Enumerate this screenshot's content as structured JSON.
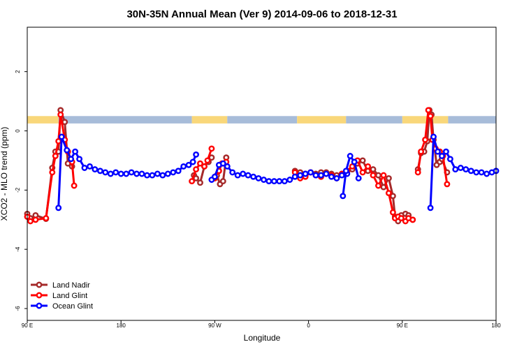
{
  "chart_data": {
    "type": "line",
    "title": "30N-35N Annual Mean (Ver 9)   2014-09-06 to 2018-12-31",
    "xlabel": "Longitude",
    "ylabel": "XCO2 - MLO trend (ppm)",
    "xlim": [
      90,
      540
    ],
    "ylim": [
      -6.4,
      3.5
    ],
    "xticks": [
      {
        "value": 90,
        "label": "90 E"
      },
      {
        "value": 180,
        "label": "180"
      },
      {
        "value": 270,
        "label": "90 W"
      },
      {
        "value": 360,
        "label": "0"
      },
      {
        "value": 450,
        "label": "90 E"
      },
      {
        "value": 540,
        "label": "180"
      }
    ],
    "yticks": [
      {
        "value": 2,
        "label": "2"
      },
      {
        "value": 0,
        "label": "0"
      },
      {
        "value": -2,
        "label": "-2"
      },
      {
        "value": -4,
        "label": "-4"
      },
      {
        "value": -6,
        "label": "-6"
      }
    ],
    "land_mask": {
      "y_top": 0.5,
      "y_bottom": 0.25,
      "ocean_color": "#a7bcd9",
      "land_color": "#f9d77a",
      "segments": [
        {
          "type": "land",
          "from": 90,
          "to": 120
        },
        {
          "type": "ocean",
          "from": 120,
          "to": 248
        },
        {
          "type": "land",
          "from": 248,
          "to": 282
        },
        {
          "type": "ocean",
          "from": 282,
          "to": 349
        },
        {
          "type": "land",
          "from": 349,
          "to": 396
        },
        {
          "type": "ocean",
          "from": 396,
          "to": 450
        },
        {
          "type": "land",
          "from": 450,
          "to": 494
        },
        {
          "type": "ocean",
          "from": 494,
          "to": 540
        }
      ]
    },
    "series": [
      {
        "name": "Land Nadir",
        "color": "#a52a2a",
        "segments": [
          {
            "x": [
              90,
              93,
              98,
              108,
              114,
              117,
              120,
              122,
              126,
              129,
              133
            ],
            "y": [
              -2.8,
              -2.95,
              -2.85,
              -2.97,
              -1.25,
              -0.7,
              -0.7,
              0.7,
              0.3,
              -1.1,
              -1.2
            ]
          },
          {
            "x": [
              250,
              252,
              256,
              260,
              264,
              267
            ],
            "y": [
              -1.5,
              -1.6,
              -1.75,
              -1.2,
              -1.05,
              -0.9
            ]
          },
          {
            "x": [
              272,
              275,
              278,
              281
            ],
            "y": [
              -1.5,
              -1.8,
              -1.7,
              -0.9
            ]
          },
          {
            "x": [
              347,
              352,
              357,
              362,
              367,
              372,
              377,
              382,
              387,
              392,
              397,
              402,
              407,
              412,
              417,
              422,
              427,
              432,
              437,
              441,
              443,
              446,
              449,
              453,
              456,
              460
            ],
            "y": [
              -1.35,
              -1.4,
              -1.45,
              -1.4,
              -1.45,
              -1.4,
              -1.4,
              -1.45,
              -1.5,
              -1.45,
              -1.4,
              -1.3,
              -1.1,
              -1.0,
              -1.35,
              -1.3,
              -1.5,
              -1.9,
              -1.6,
              -2.2,
              -2.9,
              -3.05,
              -2.85,
              -2.8,
              -2.85,
              -3.0
            ]
          },
          {
            "x": [
              465,
              468,
              471,
              474,
              476,
              478,
              480,
              483,
              486,
              488,
              493
            ],
            "y": [
              -1.3,
              -0.75,
              -0.7,
              -0.35,
              0.7,
              0.55,
              -0.3,
              -1.15,
              -1.05,
              -0.95,
              -1.4
            ]
          }
        ]
      },
      {
        "name": "Land Glint",
        "color": "#ff0000",
        "segments": [
          {
            "x": [
              90,
              93,
              98,
              108,
              114,
              117,
              120,
              122,
              126,
              129,
              133,
              135
            ],
            "y": [
              -2.9,
              -3.05,
              -3.0,
              -2.95,
              -1.4,
              -0.85,
              -0.35,
              0.55,
              -0.3,
              -0.7,
              -1.05,
              -1.85
            ]
          },
          {
            "x": [
              248,
              252,
              256,
              260,
              263,
              267
            ],
            "y": [
              -1.7,
              -1.3,
              -1.1,
              -1.2,
              -1.0,
              -0.6
            ]
          },
          {
            "x": [
              270,
              274,
              277,
              281
            ],
            "y": [
              -1.6,
              -1.35,
              -1.1,
              -1.05
            ]
          },
          {
            "x": [
              347,
              352,
              357,
              362,
              367,
              372,
              377,
              382,
              387,
              392,
              397,
              402,
              407,
              412,
              417,
              422,
              427,
              432,
              437,
              441,
              443,
              446,
              449,
              453,
              456,
              460
            ],
            "y": [
              -1.4,
              -1.6,
              -1.55,
              -1.4,
              -1.5,
              -1.55,
              -1.45,
              -1.5,
              -1.6,
              -1.45,
              -1.35,
              -1.2,
              -1.0,
              -1.4,
              -1.2,
              -1.5,
              -1.85,
              -1.5,
              -2.1,
              -2.75,
              -2.95,
              -2.9,
              -2.95,
              -3.05,
              -2.95,
              -3.0
            ]
          },
          {
            "x": [
              465,
              468,
              472,
              475,
              477,
              479,
              482,
              486,
              489,
              493
            ],
            "y": [
              -1.4,
              -0.7,
              -0.3,
              0.7,
              0.5,
              -0.3,
              -0.6,
              -0.7,
              -0.85,
              -1.8
            ]
          }
        ]
      },
      {
        "name": "Ocean Glint",
        "color": "#0000ff",
        "segments": [
          {
            "x": [
              120,
              123,
              128,
              132,
              136,
              140,
              145,
              150,
              155,
              160,
              165,
              170,
              175,
              180,
              185,
              190,
              195,
              200,
              205,
              210,
              215,
              220,
              225,
              230,
              235,
              240,
              245,
              249,
              252
            ],
            "y": [
              -2.6,
              -0.2,
              -0.65,
              -0.95,
              -0.7,
              -0.95,
              -1.25,
              -1.2,
              -1.3,
              -1.35,
              -1.4,
              -1.45,
              -1.4,
              -1.45,
              -1.45,
              -1.4,
              -1.45,
              -1.45,
              -1.5,
              -1.5,
              -1.45,
              -1.5,
              -1.45,
              -1.4,
              -1.35,
              -1.2,
              -1.15,
              -1.05,
              -0.8
            ]
          },
          {
            "x": [
              267,
              270,
              274,
              278,
              282,
              287,
              292,
              297,
              302,
              307,
              312,
              317,
              322,
              327,
              332,
              337,
              342,
              347,
              352,
              357,
              362,
              367,
              372,
              377,
              382,
              387,
              392,
              397
            ],
            "y": [
              -1.65,
              -1.55,
              -1.15,
              -1.1,
              -1.2,
              -1.4,
              -1.5,
              -1.45,
              -1.5,
              -1.55,
              -1.6,
              -1.65,
              -1.7,
              -1.7,
              -1.7,
              -1.7,
              -1.65,
              -1.55,
              -1.5,
              -1.45,
              -1.4,
              -1.5,
              -1.5,
              -1.45,
              -1.55,
              -1.6,
              -1.5,
              -1.45
            ]
          },
          {
            "x": [
              393,
              396,
              400,
              404,
              408
            ],
            "y": [
              -2.2,
              -1.35,
              -0.85,
              -1.05,
              -1.6
            ]
          },
          {
            "x": [
              477,
              480,
              484,
              488,
              492,
              496,
              501,
              506,
              511,
              516,
              521,
              526,
              531,
              536,
              540
            ],
            "y": [
              -2.6,
              -0.2,
              -0.7,
              -0.85,
              -0.7,
              -0.95,
              -1.3,
              -1.25,
              -1.3,
              -1.35,
              -1.4,
              -1.4,
              -1.45,
              -1.4,
              -1.35
            ]
          }
        ]
      }
    ]
  }
}
